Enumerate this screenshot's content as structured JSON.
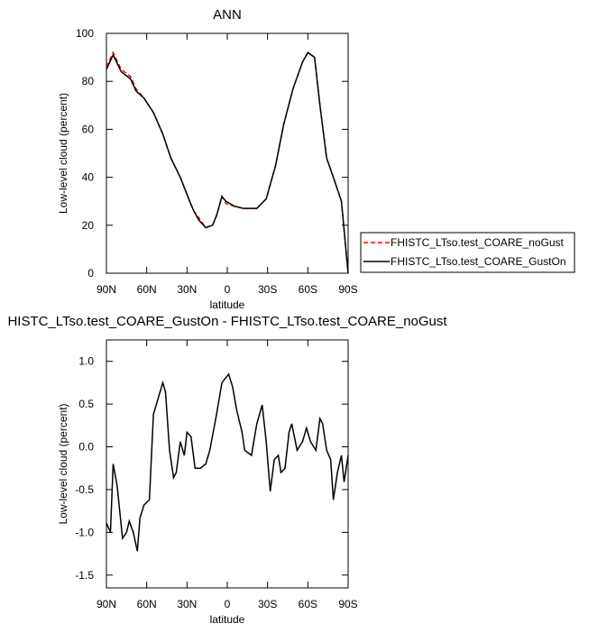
{
  "chart_data": [
    {
      "type": "line",
      "title": "ANN",
      "x_label": "latitude",
      "y_label": "Low-level cloud (percent)",
      "x": [
        90,
        85,
        79,
        72,
        68,
        62,
        55,
        48,
        42,
        35,
        28,
        25,
        21,
        16,
        11,
        8,
        4,
        1,
        -5,
        -12,
        -22,
        -29,
        -36,
        -42,
        -49,
        -56,
        -60,
        -65,
        -69,
        -74,
        -79,
        -85,
        -90
      ],
      "series": [
        {
          "name": "FHISTC_LTso.test_COARE_noGust",
          "color": "#ff0000",
          "dash": true,
          "values": [
            86,
            92,
            85,
            82,
            77,
            73,
            67,
            58,
            48,
            40,
            30,
            26,
            23,
            19,
            20,
            24,
            32,
            29,
            28,
            27,
            27,
            31,
            45,
            62,
            77,
            88,
            92,
            90,
            70,
            48,
            40,
            30,
            0
          ]
        },
        {
          "name": "FHISTC_LTso.test_COARE_GustOn",
          "color": "#000000",
          "dash": false,
          "values": [
            85,
            91,
            84,
            81,
            76,
            73,
            67,
            58,
            48,
            40,
            30,
            26,
            22,
            19,
            20,
            24,
            32,
            30,
            28,
            27,
            27,
            31,
            45,
            62,
            77,
            88,
            92,
            90,
            70,
            48,
            40,
            30,
            0
          ]
        }
      ],
      "xlim": [
        90,
        -90
      ],
      "xticks": [
        {
          "value": 90,
          "label": "90N"
        },
        {
          "value": 60,
          "label": "60N"
        },
        {
          "value": 30,
          "label": "30N"
        },
        0,
        {
          "value": -30,
          "label": "30S"
        },
        {
          "value": -60,
          "label": "60S"
        },
        {
          "value": -90,
          "label": "90S"
        }
      ],
      "ylim": [
        0,
        100
      ],
      "yticks": [
        0,
        20,
        40,
        60,
        80,
        100
      ],
      "legend": "right"
    },
    {
      "type": "line",
      "title": "HISTC_LTso.test_COARE_GustOn - FHISTC_LTso.test_COARE_noGust",
      "x_label": "latitude",
      "y_label": "Low-level cloud (percent)",
      "x": [
        90,
        87,
        85,
        82,
        78,
        75,
        73,
        70,
        67,
        65,
        62,
        58,
        55,
        52,
        48,
        46,
        43,
        40,
        38,
        35,
        32,
        30,
        27,
        24,
        20,
        16,
        13,
        8,
        4,
        -1,
        -4,
        -7,
        -11,
        -13,
        -18,
        -22,
        -26,
        -29,
        -32,
        -35,
        -38,
        -40,
        -43,
        -46,
        -48,
        -52,
        -56,
        -59,
        -62,
        -66,
        -69,
        -71,
        -74,
        -77,
        -79,
        -82,
        -85,
        -87,
        -90
      ],
      "series": [
        {
          "color": "#000000",
          "dash": false,
          "values": [
            -0.89,
            -1.0,
            -0.2,
            -0.46,
            -1.07,
            -1.0,
            -0.87,
            -1.0,
            -1.22,
            -0.83,
            -0.68,
            -0.62,
            0.38,
            0.54,
            0.75,
            0.64,
            -0.04,
            -0.36,
            -0.3,
            0.06,
            -0.1,
            0.17,
            0.12,
            -0.25,
            -0.25,
            -0.2,
            -0.04,
            0.38,
            0.75,
            0.85,
            0.7,
            0.43,
            0.17,
            -0.04,
            -0.1,
            0.27,
            0.49,
            0.06,
            -0.52,
            -0.15,
            -0.1,
            -0.3,
            -0.25,
            0.17,
            0.27,
            -0.04,
            0.06,
            0.22,
            0.06,
            -0.04,
            0.33,
            0.27,
            -0.04,
            -0.15,
            -0.62,
            -0.3,
            -0.1,
            -0.41,
            -0.1
          ]
        }
      ],
      "xlim": [
        90,
        -90
      ],
      "xticks": [
        {
          "value": 90,
          "label": "90N"
        },
        {
          "value": 60,
          "label": "60N"
        },
        {
          "value": 30,
          "label": "30N"
        },
        0,
        {
          "value": -30,
          "label": "30S"
        },
        {
          "value": -60,
          "label": "60S"
        },
        {
          "value": -90,
          "label": "90S"
        }
      ],
      "ylim": [
        -1.65,
        1.25
      ],
      "yticks": [
        {
          "value": -1.5,
          "label": "-1.5"
        },
        {
          "value": -1,
          "label": "-1.0"
        },
        -0.5,
        {
          "value": 0,
          "label": "0.0"
        },
        0.5,
        {
          "value": 1,
          "label": "1.0"
        }
      ]
    }
  ]
}
